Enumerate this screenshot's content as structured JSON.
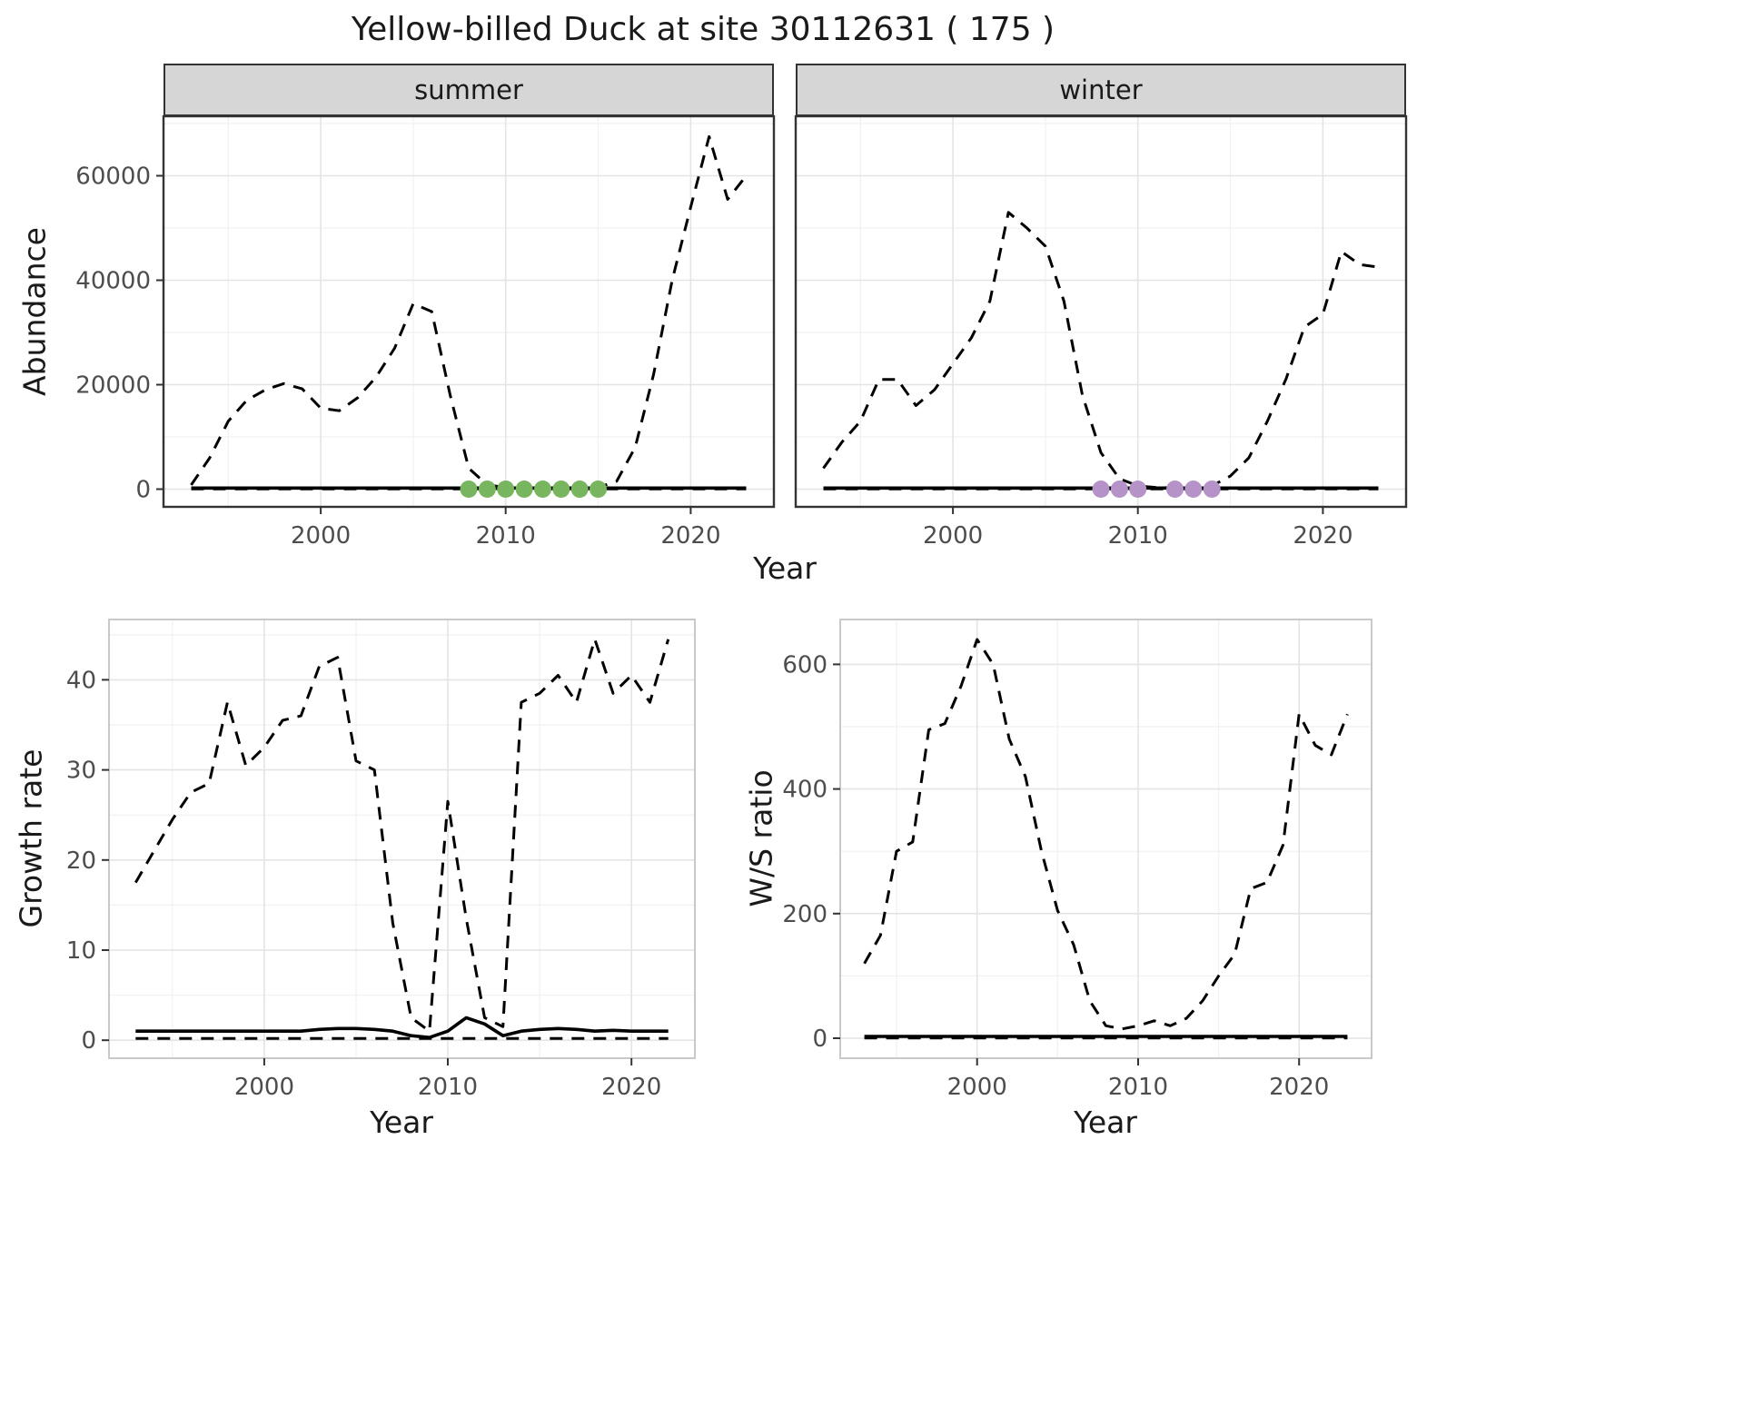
{
  "title": "Yellow-billed Duck at site 30112631 ( 175 )",
  "colors": {
    "line": "#000000",
    "summer_points": "#77b55e",
    "winter_points": "#b593c9",
    "strip_bg": "#d6d6d6",
    "grid_major": "#e4e4e4",
    "grid_minor": "#f1f1f1",
    "tick_text": "#4d4d4d",
    "panel_border_top": "#333333",
    "panel_border_bottom": "#c9c9c9"
  },
  "chart_data": [
    {
      "id": "abundance-summer",
      "type": "line",
      "facet": "summer",
      "xlabel": "Year",
      "ylabel": "Abundance",
      "grid": true,
      "legend": "none",
      "xlim": [
        1991.5,
        2024.5
      ],
      "ylim": [
        -3400,
        71400
      ],
      "xticks": [
        2000,
        2010,
        2020
      ],
      "xtick_labels": [
        "2000",
        "2010",
        "2020"
      ],
      "yticks": [
        0,
        20000,
        40000,
        60000
      ],
      "ytick_labels": [
        "0",
        "20000",
        "40000",
        "60000"
      ],
      "x": [
        1993,
        1994,
        1995,
        1996,
        1997,
        1998,
        1999,
        2000,
        2001,
        2002,
        2003,
        2004,
        2005,
        2006,
        2007,
        2008,
        2009,
        2010,
        2011,
        2012,
        2013,
        2014,
        2015,
        2016,
        2017,
        2018,
        2019,
        2020,
        2021,
        2022,
        2023
      ],
      "series": [
        {
          "name": "upper-ci",
          "style": "dashed",
          "color": "#000000",
          "values": [
            800,
            6000,
            13000,
            17000,
            19000,
            20200,
            19200,
            15500,
            15000,
            17500,
            21500,
            27000,
            35500,
            34000,
            18000,
            4000,
            800,
            300,
            150,
            150,
            250,
            150,
            300,
            1500,
            8000,
            22000,
            40000,
            54000,
            67500,
            55500,
            60000
          ]
        },
        {
          "name": "estimate",
          "style": "solid",
          "color": "#000000",
          "values": [
            200,
            200,
            200,
            200,
            200,
            200,
            200,
            200,
            200,
            200,
            200,
            200,
            200,
            200,
            200,
            200,
            200,
            200,
            200,
            200,
            200,
            200,
            200,
            200,
            200,
            200,
            200,
            200,
            200,
            200,
            200
          ]
        },
        {
          "name": "lower-ci",
          "style": "dashed",
          "color": "#000000",
          "values": [
            30,
            30,
            30,
            30,
            30,
            30,
            30,
            30,
            30,
            30,
            30,
            30,
            30,
            30,
            30,
            30,
            30,
            30,
            30,
            30,
            30,
            30,
            30,
            30,
            30,
            30,
            30,
            30,
            30,
            30,
            30
          ]
        }
      ],
      "points": {
        "name": "flagged-year-point",
        "color": "#77b55e",
        "x": [
          2008,
          2009,
          2010,
          2011,
          2012,
          2013,
          2014,
          2015
        ],
        "y": [
          0,
          0,
          0,
          0,
          0,
          0,
          0,
          0
        ]
      }
    },
    {
      "id": "abundance-winter",
      "type": "line",
      "facet": "winter",
      "xlabel": "Year",
      "ylabel": "Abundance",
      "grid": true,
      "legend": "none",
      "xlim": [
        1991.5,
        2024.5
      ],
      "ylim": [
        -3400,
        71400
      ],
      "xticks": [
        2000,
        2010,
        2020
      ],
      "xtick_labels": [
        "2000",
        "2010",
        "2020"
      ],
      "yticks": [
        0,
        20000,
        40000,
        60000
      ],
      "ytick_labels": [
        "0",
        "20000",
        "40000",
        "60000"
      ],
      "x": [
        1993,
        1994,
        1995,
        1996,
        1997,
        1998,
        1999,
        2000,
        2001,
        2002,
        2003,
        2004,
        2005,
        2006,
        2007,
        2008,
        2009,
        2010,
        2011,
        2012,
        2013,
        2014,
        2015,
        2016,
        2017,
        2018,
        2019,
        2020,
        2021,
        2022,
        2023
      ],
      "series": [
        {
          "name": "upper-ci",
          "style": "dashed",
          "color": "#000000",
          "values": [
            4000,
            9000,
            13000,
            21000,
            21000,
            16000,
            19000,
            24000,
            29000,
            36000,
            53000,
            50000,
            46500,
            36000,
            18000,
            7000,
            2000,
            600,
            300,
            250,
            350,
            600,
            2500,
            6000,
            13000,
            21000,
            31000,
            33500,
            45500,
            43000,
            42500
          ]
        },
        {
          "name": "estimate",
          "style": "solid",
          "color": "#000000",
          "values": [
            200,
            200,
            200,
            200,
            200,
            200,
            200,
            200,
            200,
            200,
            200,
            200,
            200,
            200,
            200,
            200,
            200,
            200,
            200,
            200,
            200,
            200,
            200,
            200,
            200,
            200,
            200,
            200,
            200,
            200,
            200
          ]
        },
        {
          "name": "lower-ci",
          "style": "dashed",
          "color": "#000000",
          "values": [
            30,
            30,
            30,
            30,
            30,
            30,
            30,
            30,
            30,
            30,
            30,
            30,
            30,
            30,
            30,
            30,
            30,
            30,
            30,
            30,
            30,
            30,
            30,
            30,
            30,
            30,
            30,
            30,
            30,
            30,
            30
          ]
        }
      ],
      "points": {
        "name": "flagged-year-point",
        "color": "#b593c9",
        "x": [
          2008,
          2009,
          2010,
          2012,
          2013,
          2014
        ],
        "y": [
          0,
          0,
          0,
          0,
          0,
          0
        ]
      }
    },
    {
      "id": "growth-rate",
      "type": "line",
      "xlabel": "Year",
      "ylabel": "Growth rate",
      "grid": true,
      "legend": "none",
      "xlim": [
        1991.55,
        2023.45
      ],
      "ylim": [
        -2,
        46.7
      ],
      "xticks": [
        2000,
        2010,
        2020
      ],
      "xtick_labels": [
        "2000",
        "2010",
        "2020"
      ],
      "yticks": [
        0,
        10,
        20,
        30,
        40
      ],
      "ytick_labels": [
        "0",
        "10",
        "20",
        "30",
        "40"
      ],
      "x": [
        1993,
        1994,
        1995,
        1996,
        1997,
        1998,
        1999,
        2000,
        2001,
        2002,
        2003,
        2004,
        2005,
        2006,
        2007,
        2008,
        2009,
        2010,
        2011,
        2012,
        2013,
        2014,
        2015,
        2016,
        2017,
        2018,
        2019,
        2020,
        2021,
        2022
      ],
      "series": [
        {
          "name": "upper-ci",
          "style": "dashed",
          "color": "#000000",
          "values": [
            17.5,
            21,
            24.5,
            27.5,
            28.5,
            37.5,
            30.5,
            32.5,
            35.5,
            36,
            41.5,
            42.5,
            31,
            30,
            13,
            2.5,
            1,
            26.5,
            13.5,
            2.5,
            1.5,
            37.5,
            38.5,
            40.5,
            37.5,
            44.5,
            38.5,
            40.5,
            37.5,
            44.5
          ]
        },
        {
          "name": "estimate",
          "style": "solid",
          "color": "#000000",
          "values": [
            1,
            1,
            1,
            1,
            1,
            1,
            1,
            1,
            1,
            1,
            1.2,
            1.3,
            1.3,
            1.2,
            1,
            0.5,
            0.3,
            1,
            2.5,
            1.8,
            0.5,
            1,
            1.2,
            1.3,
            1.2,
            1,
            1.1,
            1,
            1,
            1
          ]
        },
        {
          "name": "lower-ci",
          "style": "dashed",
          "color": "#000000",
          "values": [
            0.2,
            0.2,
            0.2,
            0.2,
            0.2,
            0.2,
            0.2,
            0.2,
            0.2,
            0.2,
            0.2,
            0.2,
            0.2,
            0.2,
            0.2,
            0.2,
            0.2,
            0.2,
            0.2,
            0.2,
            0.2,
            0.2,
            0.2,
            0.2,
            0.2,
            0.2,
            0.2,
            0.2,
            0.2,
            0.2
          ]
        }
      ]
    },
    {
      "id": "ws-ratio",
      "type": "line",
      "xlabel": "Year",
      "ylabel": "W/S ratio",
      "grid": true,
      "legend": "none",
      "xlim": [
        1991.5,
        2024.5
      ],
      "ylim": [
        -32,
        672
      ],
      "xticks": [
        2000,
        2010,
        2020
      ],
      "xtick_labels": [
        "2000",
        "2010",
        "2020"
      ],
      "yticks": [
        0,
        200,
        400,
        600
      ],
      "ytick_labels": [
        "0",
        "200",
        "400",
        "600"
      ],
      "x": [
        1993,
        1994,
        1995,
        1996,
        1997,
        1998,
        1999,
        2000,
        2001,
        2002,
        2003,
        2004,
        2005,
        2006,
        2007,
        2008,
        2009,
        2010,
        2011,
        2012,
        2013,
        2014,
        2015,
        2016,
        2017,
        2018,
        2019,
        2020,
        2021,
        2022,
        2023
      ],
      "series": [
        {
          "name": "upper-ci",
          "style": "dashed",
          "color": "#000000",
          "values": [
            120,
            165,
            300,
            315,
            495,
            505,
            565,
            640,
            600,
            480,
            420,
            300,
            205,
            150,
            60,
            20,
            15,
            20,
            28,
            20,
            32,
            60,
            100,
            135,
            240,
            250,
            310,
            520,
            470,
            455,
            520
          ]
        },
        {
          "name": "estimate",
          "style": "solid",
          "color": "#000000",
          "values": [
            3,
            3,
            3,
            3,
            3,
            3,
            3,
            3,
            3,
            3,
            3,
            3,
            3,
            3,
            3,
            3,
            3,
            3,
            3,
            3,
            3,
            3,
            3,
            3,
            3,
            3,
            3,
            3,
            3,
            3,
            3
          ]
        },
        {
          "name": "lower-ci",
          "style": "dashed",
          "color": "#000000",
          "values": [
            0.5,
            0.5,
            0.5,
            0.5,
            0.5,
            0.5,
            0.5,
            0.5,
            0.5,
            0.5,
            0.5,
            0.5,
            0.5,
            0.5,
            0.5,
            0.5,
            0.5,
            0.5,
            0.5,
            0.5,
            0.5,
            0.5,
            0.5,
            0.5,
            0.5,
            0.5,
            0.5,
            0.5,
            0.5,
            0.5,
            0.5
          ]
        }
      ]
    }
  ]
}
